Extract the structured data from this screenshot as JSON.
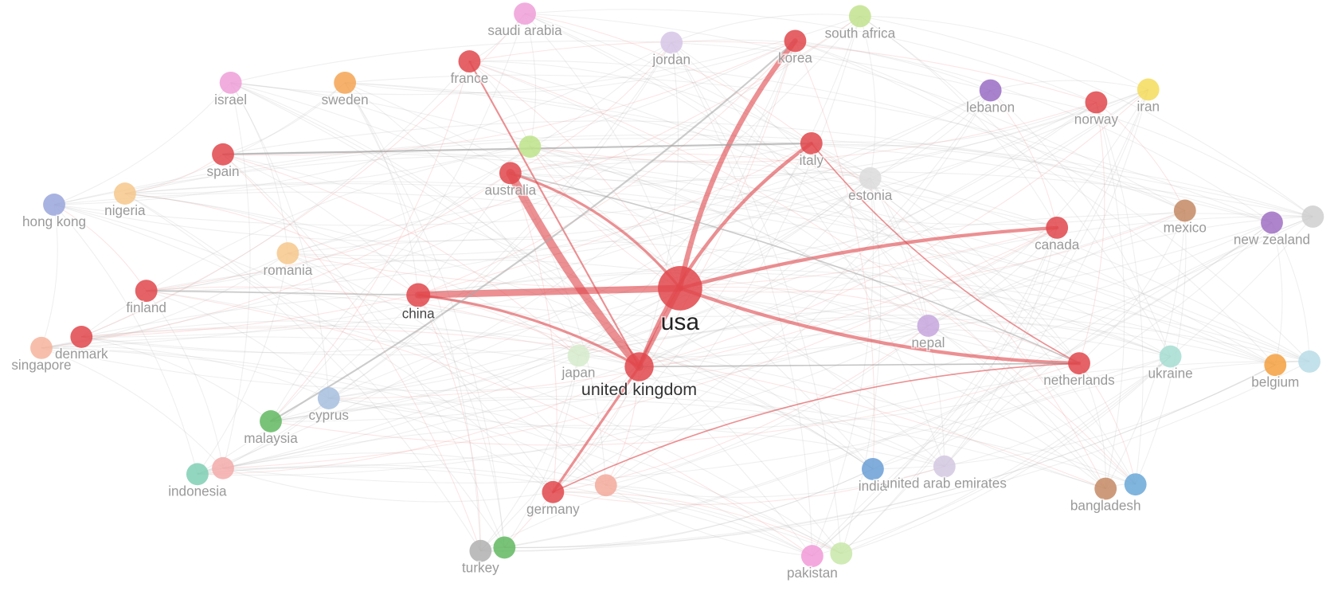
{
  "nodes": [
    {
      "label": "saudi arabia"
    },
    {
      "label": "jordan"
    },
    {
      "label": "korea"
    },
    {
      "label": "south africa"
    },
    {
      "label": "france"
    },
    {
      "label": "israel"
    },
    {
      "label": "sweden"
    },
    {
      "label": "lebanon"
    },
    {
      "label": "norway"
    },
    {
      "label": "iran"
    },
    {
      "label": "spain"
    },
    {
      "label": "australia"
    },
    {
      "label": "italy"
    },
    {
      "label": "estonia"
    },
    {
      "label": "nigeria"
    },
    {
      "label": "hong kong"
    },
    {
      "label": "mexico"
    },
    {
      "label": "canada"
    },
    {
      "label": "new zealand"
    },
    {
      "label": "romania"
    },
    {
      "label": "usa"
    },
    {
      "label": "finland"
    },
    {
      "label": "china"
    },
    {
      "label": "nepal"
    },
    {
      "label": "denmark"
    },
    {
      "label": "singapore"
    },
    {
      "label": "japan"
    },
    {
      "label": "united kingdom"
    },
    {
      "label": "netherlands"
    },
    {
      "label": "ukraine"
    },
    {
      "label": "belgium"
    },
    {
      "label": "cyprus"
    },
    {
      "label": "malaysia"
    },
    {
      "label": "indonesia"
    },
    {
      "label": "india"
    },
    {
      "label": "united arab emirates"
    },
    {
      "label": "bangladesh"
    },
    {
      "label": "germany"
    },
    {
      "label": "turkey"
    },
    {
      "label": "pakistan"
    }
  ]
}
